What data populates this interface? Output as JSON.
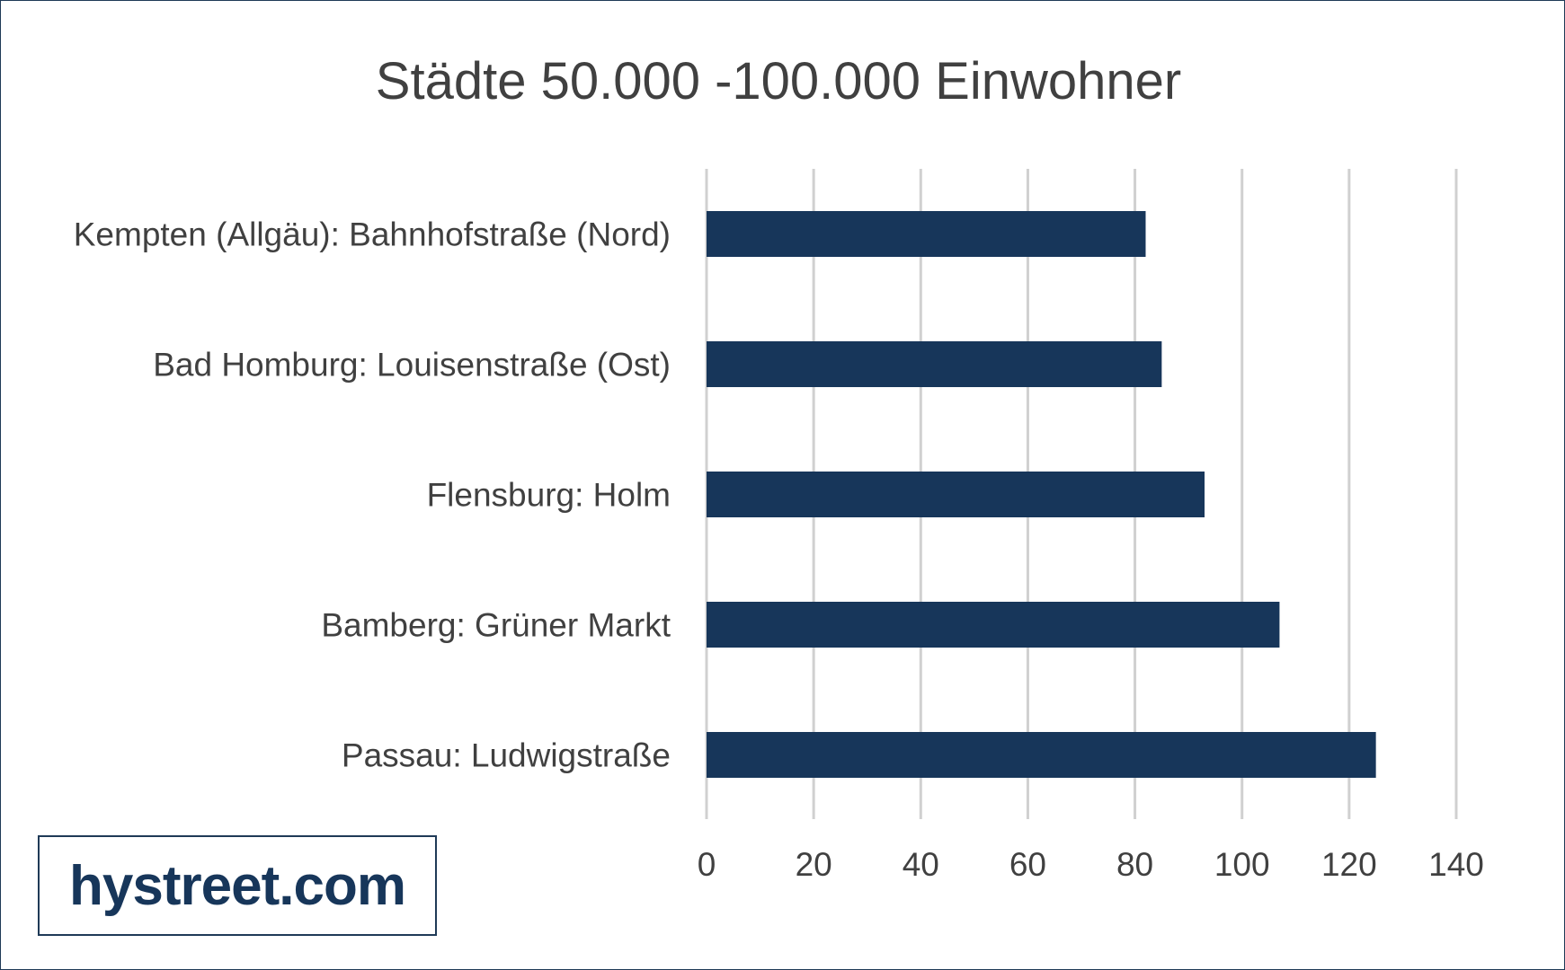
{
  "colors": {
    "bar": "#17365a",
    "grid": "#d0d0d0",
    "text": "#404040",
    "frame": "#1f3a57"
  },
  "logo": {
    "text": "hystreet.com"
  },
  "chart_data": {
    "type": "bar",
    "orientation": "horizontal",
    "title": "Städte 50.000 -100.000 Einwohner",
    "categories": [
      "Kempten (Allgäu): Bahnhofstraße (Nord)",
      "Bad Homburg: Louisenstraße (Ost)",
      "Flensburg: Holm",
      "Bamberg: Grüner Markt",
      "Passau: Ludwigstraße"
    ],
    "values": [
      82,
      85,
      93,
      107,
      125
    ],
    "xlim": [
      0,
      140
    ],
    "xticks": [
      0,
      20,
      40,
      60,
      80,
      100,
      120,
      140
    ],
    "grid": "vertical",
    "legend": "none",
    "xlabel": "",
    "ylabel": ""
  }
}
